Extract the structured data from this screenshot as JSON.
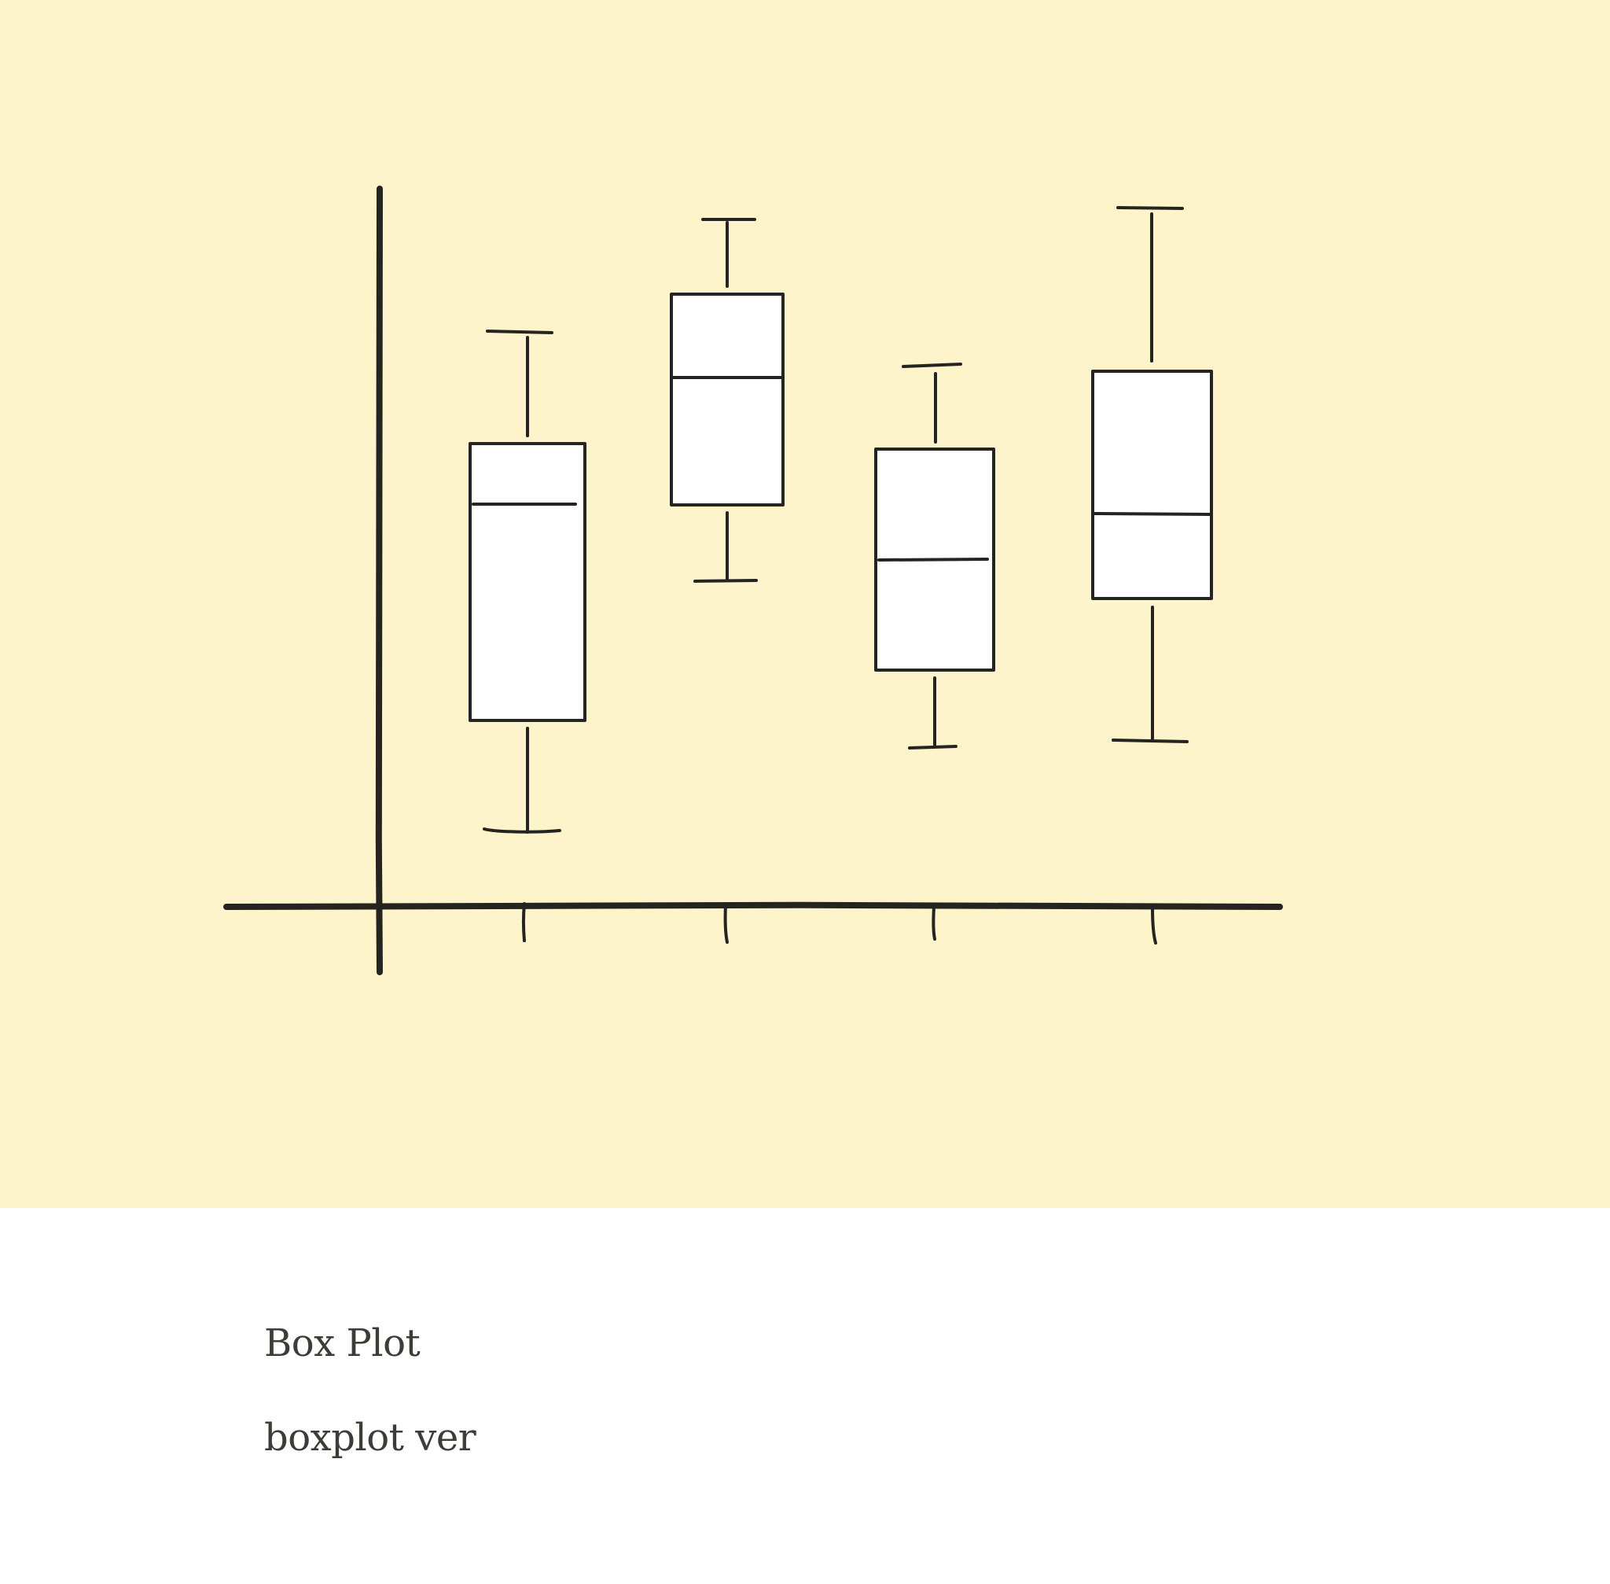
{
  "caption": {
    "title": "Box Plot",
    "subtitle": "boxplot ver"
  },
  "illustration": {
    "kind": "hand-drawn box plot sketch",
    "box_count": 4,
    "colors": {
      "background": "#fef4cc",
      "ink": "#262420",
      "box_fill": "#ffffff"
    }
  }
}
